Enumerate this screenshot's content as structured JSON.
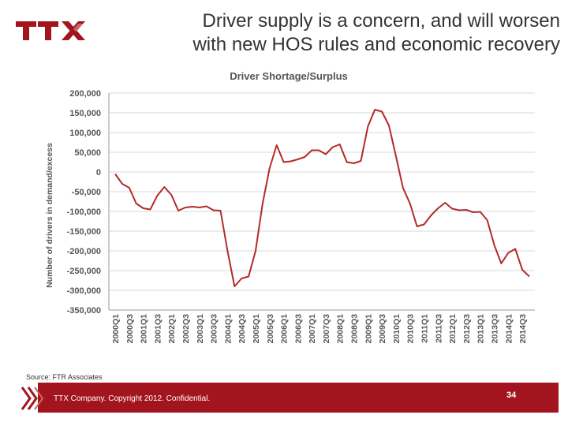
{
  "logo_text": "TTX",
  "slide": {
    "title_line1": "Driver supply is a concern, and will worsen",
    "title_line2": "with new HOS rules and economic recovery"
  },
  "source": "Source: FTR Associates",
  "footer": {
    "text": "TTX Company. Copyright 2012. Confidential.",
    "page": "34"
  },
  "colors": {
    "brand": "#a3151e",
    "line": "#b22b2b"
  },
  "chart_data": {
    "type": "line",
    "title": "Driver Shortage/Surplus",
    "xlabel": "",
    "ylabel": "Number of drivers in demand/excess",
    "ylim": [
      -350000,
      200000
    ],
    "yticks": [
      200000,
      150000,
      100000,
      50000,
      0,
      -50000,
      -100000,
      -150000,
      -200000,
      -250000,
      -300000,
      -350000
    ],
    "ytick_labels": [
      "200,000",
      "150,000",
      "100,000",
      "50,000",
      "0",
      "-50,000",
      "-100,000",
      "-150,000",
      "-200,000",
      "-250,000",
      "-300,000",
      "-350,000"
    ],
    "grid": "horizontal",
    "categories": [
      "2000Q1",
      "2000Q2",
      "2000Q3",
      "2000Q4",
      "2001Q1",
      "2001Q2",
      "2001Q3",
      "2001Q4",
      "2002Q1",
      "2002Q2",
      "2002Q3",
      "2002Q4",
      "2003Q1",
      "2003Q2",
      "2003Q3",
      "2003Q4",
      "2004Q1",
      "2004Q2",
      "2004Q3",
      "2004Q4",
      "2005Q1",
      "2005Q2",
      "2005Q3",
      "2005Q4",
      "2006Q1",
      "2006Q2",
      "2006Q3",
      "2006Q4",
      "2007Q1",
      "2007Q2",
      "2007Q3",
      "2007Q4",
      "2008Q1",
      "2008Q2",
      "2008Q3",
      "2008Q4",
      "2009Q1",
      "2009Q2",
      "2009Q3",
      "2009Q4",
      "2010Q1",
      "2010Q2",
      "2010Q3",
      "2010Q4",
      "2011Q1",
      "2011Q2",
      "2011Q3",
      "2011Q4",
      "2012Q1",
      "2012Q2",
      "2012Q3",
      "2012Q4",
      "2013Q1",
      "2013Q2",
      "2013Q3",
      "2013Q4",
      "2014Q1",
      "2014Q2",
      "2014Q3",
      "2014Q4"
    ],
    "tick_labels": [
      "2000Q1",
      "2000Q3",
      "2001Q1",
      "2001Q3",
      "2002Q1",
      "2002Q3",
      "2003Q1",
      "2003Q3",
      "2004Q1",
      "2004Q3",
      "2005Q1",
      "2005Q3",
      "2006Q1",
      "2006Q3",
      "2007Q1",
      "2007Q3",
      "2008Q1",
      "2008Q3",
      "2009Q1",
      "2009Q3",
      "2010Q1",
      "2010Q3",
      "2011Q1",
      "2011Q3",
      "2012Q1",
      "2012Q3",
      "2013Q1",
      "2013Q3",
      "2014Q1",
      "2014Q3"
    ],
    "series": [
      {
        "values": [
          -5000,
          -30000,
          -40000,
          -80000,
          -92000,
          -95000,
          -60000,
          -38000,
          -58000,
          -98000,
          -90000,
          -88000,
          -90000,
          -87000,
          -97000,
          -98000,
          -200000,
          -290000,
          -270000,
          -265000,
          -200000,
          -80000,
          10000,
          68000,
          25000,
          27000,
          32000,
          38000,
          55000,
          55000,
          45000,
          63000,
          70000,
          25000,
          22000,
          28000,
          115000,
          158000,
          153000,
          118000,
          40000,
          -40000,
          -80000,
          -138000,
          -133000,
          -110000,
          -92000,
          -78000,
          -93000,
          -97000,
          -96000,
          -102000,
          -101000,
          -122000,
          -185000,
          -232000,
          -205000,
          -195000,
          -248000,
          -265000
        ]
      }
    ]
  }
}
